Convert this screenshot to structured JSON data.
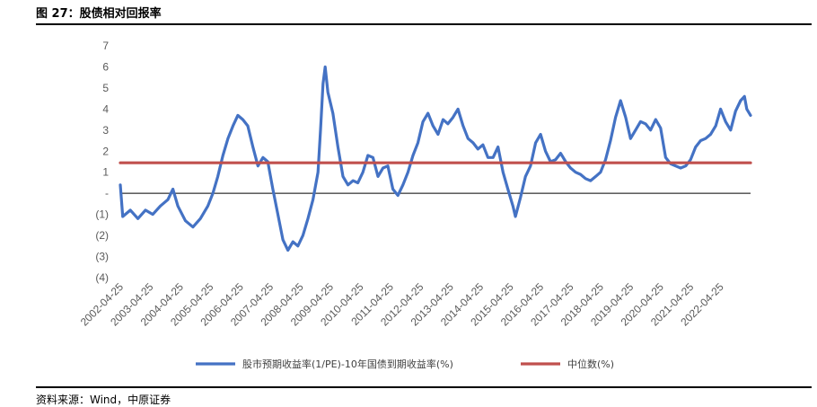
{
  "header": {
    "title": "图 27：股债相对回报率"
  },
  "footer": {
    "source": "资料来源：Wind，中原证券"
  },
  "colors": {
    "series": "#4472C4",
    "median": "#C0504D",
    "axis": "#000000",
    "tick": "#595959"
  },
  "chart_data": {
    "type": "line",
    "title": "",
    "xlabel": "",
    "ylabel": "",
    "ylim": [
      -4,
      7
    ],
    "y_ticks": [
      {
        "value": 7,
        "label": "7"
      },
      {
        "value": 6,
        "label": "6"
      },
      {
        "value": 5,
        "label": "5"
      },
      {
        "value": 4,
        "label": "4"
      },
      {
        "value": 3,
        "label": "3"
      },
      {
        "value": 2,
        "label": "2"
      },
      {
        "value": 1,
        "label": "1"
      },
      {
        "value": 0,
        "label": "-"
      },
      {
        "value": -1,
        "label": "(1)"
      },
      {
        "value": -2,
        "label": "(2)"
      },
      {
        "value": -3,
        "label": "(3)"
      },
      {
        "value": -4,
        "label": "(4)"
      }
    ],
    "x_range": [
      "2002-04-25",
      "2023-04-25"
    ],
    "x_ticks": [
      "2002-04-25",
      "2003-04-25",
      "2004-04-25",
      "2005-04-25",
      "2006-04-25",
      "2007-04-25",
      "2008-04-25",
      "2009-04-25",
      "2010-04-25",
      "2011-04-25",
      "2012-04-25",
      "2013-04-25",
      "2014-04-25",
      "2015-04-25",
      "2016-04-25",
      "2017-04-25",
      "2018-04-25",
      "2019-04-25",
      "2020-04-25",
      "2021-04-25",
      "2022-04-25"
    ],
    "series": [
      {
        "name": "股市预期收益率(1/PE)-10年国债到期收益率(%)",
        "points": [
          [
            "2002-04-25",
            0.4
          ],
          [
            "2002-05-25",
            -1.1
          ],
          [
            "2002-08-25",
            -0.8
          ],
          [
            "2002-11-25",
            -1.2
          ],
          [
            "2003-02-25",
            -0.8
          ],
          [
            "2003-05-25",
            -1.0
          ],
          [
            "2003-08-25",
            -0.6
          ],
          [
            "2003-11-25",
            -0.3
          ],
          [
            "2004-01-25",
            0.2
          ],
          [
            "2004-03-25",
            -0.6
          ],
          [
            "2004-06-25",
            -1.3
          ],
          [
            "2004-09-25",
            -1.6
          ],
          [
            "2004-12-25",
            -1.2
          ],
          [
            "2005-03-25",
            -0.6
          ],
          [
            "2005-05-25",
            0.0
          ],
          [
            "2005-07-25",
            0.8
          ],
          [
            "2005-09-25",
            1.8
          ],
          [
            "2005-11-25",
            2.6
          ],
          [
            "2006-01-25",
            3.2
          ],
          [
            "2006-03-25",
            3.7
          ],
          [
            "2006-05-25",
            3.5
          ],
          [
            "2006-07-25",
            3.2
          ],
          [
            "2006-09-25",
            2.2
          ],
          [
            "2006-11-25",
            1.3
          ],
          [
            "2007-01-25",
            1.7
          ],
          [
            "2007-03-25",
            1.5
          ],
          [
            "2007-05-25",
            0.2
          ],
          [
            "2007-07-25",
            -1.0
          ],
          [
            "2007-09-25",
            -2.2
          ],
          [
            "2007-11-25",
            -2.7
          ],
          [
            "2008-01-25",
            -2.3
          ],
          [
            "2008-03-25",
            -2.5
          ],
          [
            "2008-05-25",
            -2.0
          ],
          [
            "2008-07-25",
            -1.2
          ],
          [
            "2008-09-25",
            -0.3
          ],
          [
            "2008-11-25",
            1.0
          ],
          [
            "2008-12-25",
            3.0
          ],
          [
            "2009-01-25",
            5.2
          ],
          [
            "2009-02-20",
            6.0
          ],
          [
            "2009-03-25",
            4.8
          ],
          [
            "2009-05-25",
            3.8
          ],
          [
            "2009-07-25",
            2.2
          ],
          [
            "2009-09-25",
            0.8
          ],
          [
            "2009-11-25",
            0.4
          ],
          [
            "2010-01-25",
            0.6
          ],
          [
            "2010-03-25",
            0.5
          ],
          [
            "2010-05-25",
            1.0
          ],
          [
            "2010-07-25",
            1.8
          ],
          [
            "2010-09-25",
            1.7
          ],
          [
            "2010-11-25",
            0.8
          ],
          [
            "2011-01-25",
            1.2
          ],
          [
            "2011-03-25",
            1.3
          ],
          [
            "2011-05-25",
            0.2
          ],
          [
            "2011-07-25",
            -0.1
          ],
          [
            "2011-09-25",
            0.4
          ],
          [
            "2011-11-25",
            1.0
          ],
          [
            "2012-01-25",
            1.8
          ],
          [
            "2012-03-25",
            2.4
          ],
          [
            "2012-05-25",
            3.4
          ],
          [
            "2012-07-25",
            3.8
          ],
          [
            "2012-09-25",
            3.2
          ],
          [
            "2012-11-25",
            2.8
          ],
          [
            "2013-01-25",
            3.5
          ],
          [
            "2013-03-25",
            3.3
          ],
          [
            "2013-05-25",
            3.6
          ],
          [
            "2013-07-25",
            4.0
          ],
          [
            "2013-09-25",
            3.2
          ],
          [
            "2013-11-25",
            2.6
          ],
          [
            "2014-01-25",
            2.4
          ],
          [
            "2014-03-25",
            2.1
          ],
          [
            "2014-05-25",
            2.3
          ],
          [
            "2014-07-25",
            1.7
          ],
          [
            "2014-09-25",
            1.7
          ],
          [
            "2014-11-25",
            2.2
          ],
          [
            "2015-01-25",
            1.0
          ],
          [
            "2015-03-25",
            0.2
          ],
          [
            "2015-05-25",
            -0.6
          ],
          [
            "2015-06-25",
            -1.1
          ],
          [
            "2015-08-25",
            -0.2
          ],
          [
            "2015-10-25",
            0.8
          ],
          [
            "2015-12-25",
            1.3
          ],
          [
            "2016-02-25",
            2.4
          ],
          [
            "2016-04-25",
            2.8
          ],
          [
            "2016-06-25",
            2.0
          ],
          [
            "2016-08-25",
            1.5
          ],
          [
            "2016-10-25",
            1.6
          ],
          [
            "2016-12-25",
            1.9
          ],
          [
            "2017-02-25",
            1.5
          ],
          [
            "2017-04-25",
            1.2
          ],
          [
            "2017-06-25",
            1.0
          ],
          [
            "2017-08-25",
            0.9
          ],
          [
            "2017-10-25",
            0.7
          ],
          [
            "2017-12-25",
            0.6
          ],
          [
            "2018-02-25",
            0.8
          ],
          [
            "2018-04-25",
            1.0
          ],
          [
            "2018-06-25",
            1.6
          ],
          [
            "2018-08-25",
            2.5
          ],
          [
            "2018-10-25",
            3.6
          ],
          [
            "2018-12-25",
            4.4
          ],
          [
            "2019-02-25",
            3.6
          ],
          [
            "2019-04-25",
            2.6
          ],
          [
            "2019-06-25",
            3.0
          ],
          [
            "2019-08-25",
            3.4
          ],
          [
            "2019-10-25",
            3.3
          ],
          [
            "2019-12-25",
            3.0
          ],
          [
            "2020-02-25",
            3.5
          ],
          [
            "2020-04-25",
            3.1
          ],
          [
            "2020-06-25",
            1.7
          ],
          [
            "2020-08-25",
            1.4
          ],
          [
            "2020-10-25",
            1.3
          ],
          [
            "2020-12-25",
            1.2
          ],
          [
            "2021-02-25",
            1.3
          ],
          [
            "2021-04-25",
            1.6
          ],
          [
            "2021-06-25",
            2.2
          ],
          [
            "2021-08-25",
            2.5
          ],
          [
            "2021-10-25",
            2.6
          ],
          [
            "2021-12-25",
            2.8
          ],
          [
            "2022-02-25",
            3.2
          ],
          [
            "2022-04-25",
            4.0
          ],
          [
            "2022-06-25",
            3.4
          ],
          [
            "2022-08-25",
            3.0
          ],
          [
            "2022-10-25",
            3.9
          ],
          [
            "2022-12-25",
            4.4
          ],
          [
            "2023-02-10",
            4.6
          ],
          [
            "2023-03-10",
            4.0
          ],
          [
            "2023-04-25",
            3.7
          ]
        ]
      },
      {
        "name": "中位数(%)",
        "points": [
          [
            "2002-04-25",
            1.45
          ],
          [
            "2023-04-25",
            1.45
          ]
        ]
      }
    ],
    "legend_position": "bottom",
    "grid": false
  }
}
